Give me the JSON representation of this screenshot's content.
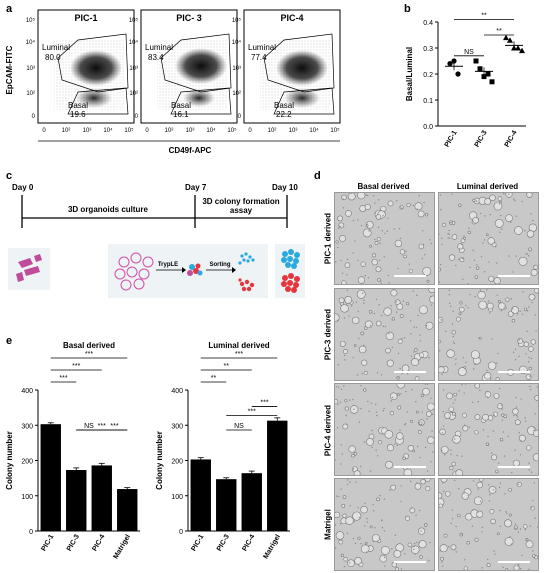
{
  "panels": {
    "a": "a",
    "b": "b",
    "c": "c",
    "d": "d",
    "e": "e"
  },
  "flow": {
    "plots": [
      {
        "title": "PIC-1",
        "luminal_label": "Luminal",
        "luminal_value": "80.0",
        "basal_label": "Basal",
        "basal_value": "19.6"
      },
      {
        "title": "PIC- 3",
        "luminal_label": "Luminal",
        "luminal_value": "83.4",
        "basal_label": "Basal",
        "basal_value": "16.1"
      },
      {
        "title": "PIC-4",
        "luminal_label": "Luminal",
        "luminal_value": "77.4",
        "basal_label": "Basal",
        "basal_value": "22.2"
      }
    ],
    "y_axis_label": "EpCAM-FITC",
    "x_axis_label": "CD49f-APC",
    "y_ticks": [
      "10⁵",
      "10⁴",
      "10³",
      "10²",
      "0"
    ],
    "x_ticks": [
      "0",
      "10²",
      "10³",
      "10⁴",
      "10⁵"
    ]
  },
  "chart_data": [
    {
      "type": "scatter",
      "ylabel": "Basal/Luminal",
      "categories": [
        "PIC-1",
        "PIC-3",
        "PIC-4"
      ],
      "ylim": [
        0,
        0.4
      ],
      "yticks": [
        "0.0",
        "0.1",
        "0.2",
        "0.3",
        "0.4"
      ],
      "points": [
        [
          0.24,
          0.25,
          0.2
        ],
        [
          0.25,
          0.22,
          0.19,
          0.2,
          0.17
        ],
        [
          0.34,
          0.33,
          0.3,
          0.3,
          0.29
        ]
      ],
      "means": [
        0.23,
        0.21,
        0.31
      ],
      "significance": [
        {
          "from": 0,
          "to": 1,
          "label": "NS"
        },
        {
          "from": 1,
          "to": 2,
          "label": "**"
        },
        {
          "from": 0,
          "to": 2,
          "label": "**"
        }
      ]
    },
    {
      "type": "bar",
      "title": "Basal derived",
      "ylabel": "Colony number",
      "categories": [
        "PIC-1",
        "PIC-3",
        "PIC-4",
        "Matrigel"
      ],
      "values": [
        303,
        173,
        186,
        119
      ],
      "errors": [
        4,
        6,
        6,
        4
      ],
      "ylim": [
        0,
        400
      ],
      "yticks": [
        "0",
        "100",
        "200",
        "300",
        "400"
      ],
      "significance": [
        {
          "from": 0,
          "to": 3,
          "label": "***"
        },
        {
          "from": 0,
          "to": 2,
          "label": "***"
        },
        {
          "from": 0,
          "to": 1,
          "label": "***"
        },
        {
          "from": 1,
          "to": 3,
          "label": "***"
        },
        {
          "from": 1,
          "to": 2,
          "label": "NS"
        },
        {
          "from": 2,
          "to": 3,
          "label": "***"
        }
      ]
    },
    {
      "type": "bar",
      "title": "Luminal derived",
      "ylabel": "Colony number",
      "categories": [
        "PIC-1",
        "PIC-3",
        "PIC-4",
        "Matrigel"
      ],
      "values": [
        203,
        147,
        164,
        313
      ],
      "errors": [
        5,
        4,
        6,
        8
      ],
      "ylim": [
        0,
        400
      ],
      "yticks": [
        "0",
        "100",
        "200",
        "300",
        "400"
      ],
      "significance": [
        {
          "from": 0,
          "to": 3,
          "label": "***"
        },
        {
          "from": 0,
          "to": 2,
          "label": "**"
        },
        {
          "from": 0,
          "to": 1,
          "label": "**"
        },
        {
          "from": 1,
          "to": 3,
          "label": "***"
        },
        {
          "from": 2,
          "to": 3,
          "label": "***"
        },
        {
          "from": 1,
          "to": 2,
          "label": "NS"
        }
      ]
    }
  ],
  "timeline": {
    "day0": "Day 0",
    "day7": "Day 7",
    "day10": "Day 10",
    "culture_label": "3D organoids culture",
    "assay_line1": "3D colony formation",
    "assay_line2": "assay",
    "tryple_label": "TrypLE",
    "sorting_label": "Sorting",
    "colors": {
      "purple": "#c04b9a",
      "red": "#e5343c",
      "blue": "#2aa9e0",
      "ring": "#d04fa6"
    }
  },
  "micro": {
    "col_heads": [
      "Basal derived",
      "Luminal derived"
    ],
    "row_heads": [
      "PIC-1 derived",
      "PIC-3 derived",
      "PIC-4 derived",
      "Matrigel"
    ]
  }
}
